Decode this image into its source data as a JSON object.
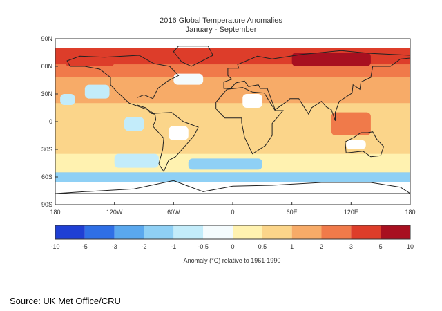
{
  "map": {
    "title": "2016 Global Temperature Anomalies",
    "subtitle": "January - September",
    "lat_ticks": [
      "90N",
      "60N",
      "30N",
      "0",
      "30S",
      "60S",
      "90S"
    ],
    "lon_ticks": [
      "180",
      "120W",
      "60W",
      "0",
      "60E",
      "120E",
      "180"
    ]
  },
  "colorbar": {
    "ticks": [
      "-10",
      "-5",
      "-3",
      "-2",
      "-1",
      "-0.5",
      "0",
      "0.5",
      "1",
      "2",
      "3",
      "5",
      "10"
    ],
    "colors": [
      "#1f3fd4",
      "#2f6fe6",
      "#5aa8ee",
      "#8fd0f5",
      "#c3ecfa",
      "#f4fbfd",
      "#fff2b0",
      "#fbd58a",
      "#f7ab68",
      "#f07a4a",
      "#dd3d2a",
      "#a81020"
    ],
    "label": "Anomaly (°C) relative to 1961-1990"
  },
  "source": "Source: UK Met Office/CRU"
}
